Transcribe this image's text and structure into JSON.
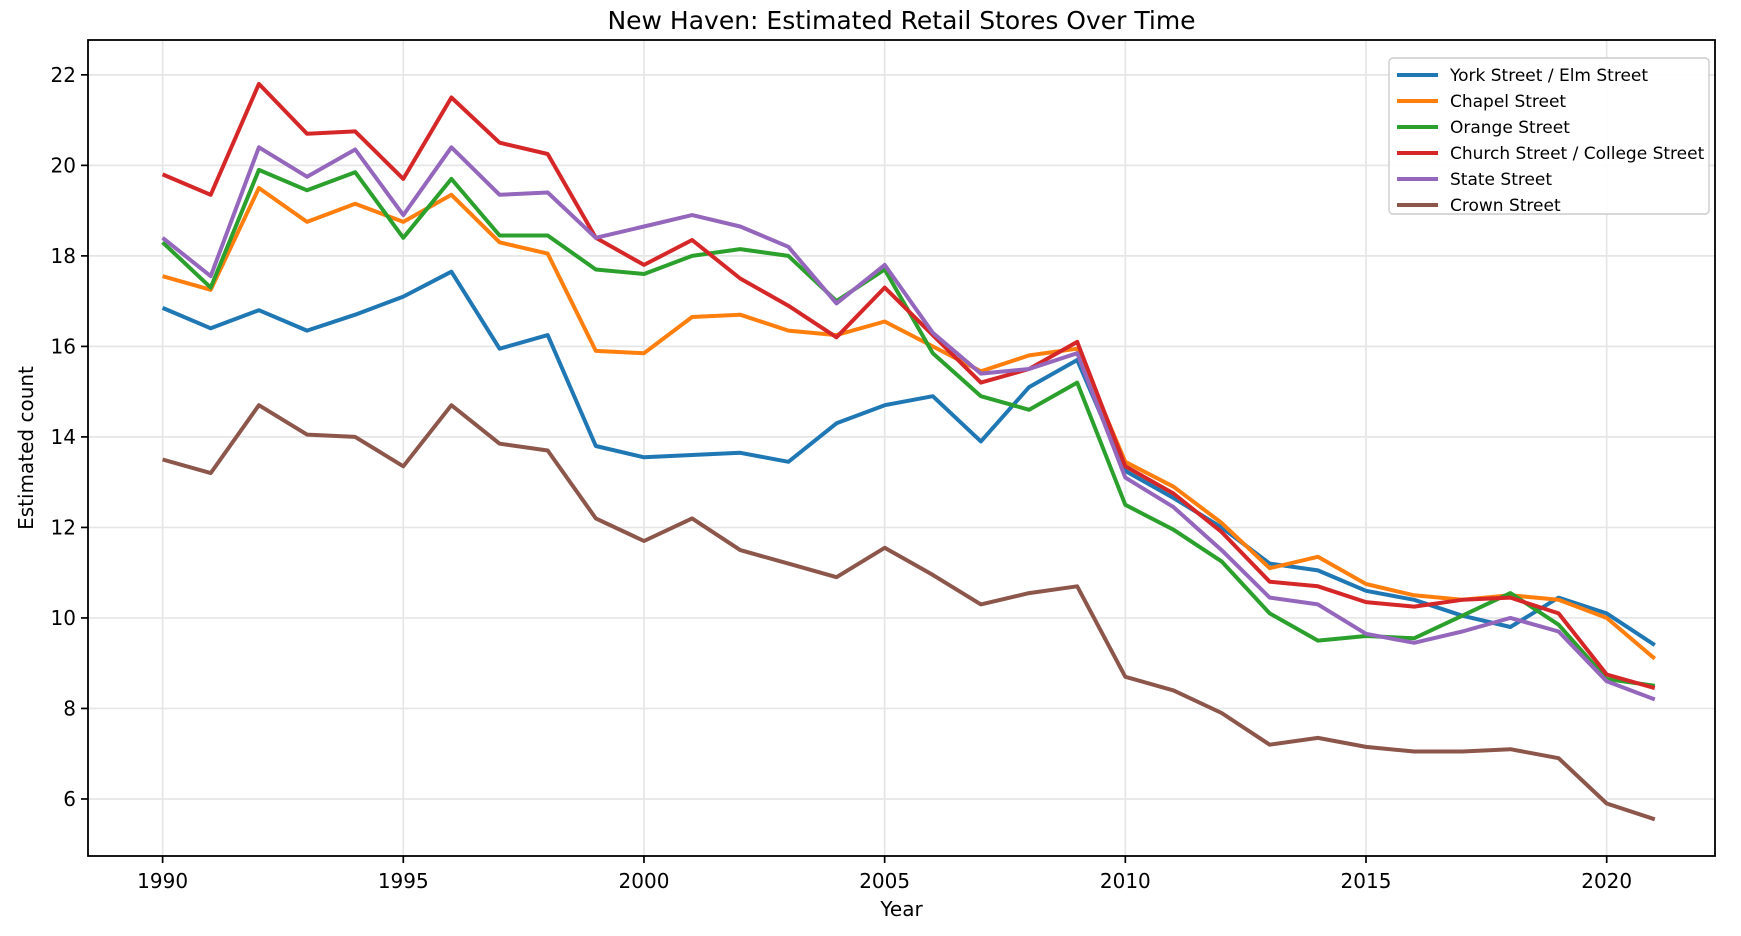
{
  "chart_data": {
    "type": "line",
    "title": "New Haven: Estimated Retail Stores Over Time",
    "xlabel": "Year",
    "ylabel": "Estimated count",
    "grid": true,
    "legend_position": "upper right",
    "x": [
      1990,
      1991,
      1992,
      1993,
      1994,
      1995,
      1996,
      1997,
      1998,
      1999,
      2000,
      2001,
      2002,
      2003,
      2004,
      2005,
      2006,
      2007,
      2008,
      2009,
      2010,
      2011,
      2012,
      2013,
      2014,
      2015,
      2016,
      2017,
      2018,
      2019,
      2020,
      2021
    ],
    "x_ticks": [
      1990,
      1995,
      2000,
      2005,
      2010,
      2015,
      2020
    ],
    "y_ticks": [
      6,
      8,
      10,
      12,
      14,
      16,
      18,
      20,
      22
    ],
    "xlim": [
      1988.45,
      2022.25
    ],
    "ylim": [
      4.74,
      22.77
    ],
    "series": [
      {
        "name": "York Street / Elm Street",
        "color": "#1f77b4",
        "values": [
          16.85,
          16.4,
          16.8,
          16.35,
          16.7,
          17.1,
          17.65,
          15.95,
          16.25,
          13.8,
          13.55,
          13.6,
          13.65,
          13.45,
          14.3,
          14.7,
          14.9,
          13.9,
          15.1,
          15.7,
          13.25,
          12.65,
          12.0,
          11.2,
          11.05,
          10.6,
          10.4,
          10.05,
          9.8,
          10.45,
          10.1,
          9.4
        ]
      },
      {
        "name": "Chapel Street",
        "color": "#ff7f0e",
        "values": [
          17.55,
          17.25,
          19.5,
          18.75,
          19.15,
          18.75,
          19.35,
          18.3,
          18.05,
          15.9,
          15.85,
          16.65,
          16.7,
          16.35,
          16.25,
          16.55,
          16.0,
          15.45,
          15.8,
          15.95,
          13.45,
          12.9,
          12.1,
          11.1,
          11.35,
          10.75,
          10.5,
          10.4,
          10.5,
          10.4,
          10.0,
          9.1
        ]
      },
      {
        "name": "Orange Street",
        "color": "#2ca02c",
        "values": [
          18.3,
          17.3,
          19.9,
          19.45,
          19.85,
          18.4,
          19.7,
          18.45,
          18.45,
          17.7,
          17.6,
          18.0,
          18.15,
          18.0,
          17.0,
          17.7,
          15.85,
          14.9,
          14.6,
          15.2,
          12.5,
          11.95,
          11.25,
          10.1,
          9.5,
          9.6,
          9.55,
          10.05,
          10.55,
          9.85,
          8.65,
          8.5
        ]
      },
      {
        "name": "Church Street / College Street",
        "color": "#d62728",
        "values": [
          19.8,
          19.35,
          21.8,
          20.7,
          20.75,
          19.7,
          21.5,
          20.5,
          20.25,
          18.4,
          17.8,
          18.35,
          17.5,
          16.9,
          16.2,
          17.3,
          16.25,
          15.2,
          15.5,
          16.1,
          13.35,
          12.75,
          11.9,
          10.8,
          10.7,
          10.35,
          10.25,
          10.4,
          10.45,
          10.1,
          8.75,
          8.45
        ]
      },
      {
        "name": "State Street",
        "color": "#9467bd",
        "values": [
          18.4,
          17.55,
          20.4,
          19.75,
          20.35,
          18.9,
          20.4,
          19.35,
          19.4,
          18.4,
          18.65,
          18.9,
          18.65,
          18.2,
          16.95,
          17.8,
          16.3,
          15.4,
          15.5,
          15.85,
          13.1,
          12.45,
          11.5,
          10.45,
          10.3,
          9.65,
          9.45,
          9.7,
          10.0,
          9.7,
          8.6,
          8.2
        ]
      },
      {
        "name": "Crown Street",
        "color": "#8c564b",
        "values": [
          13.5,
          13.2,
          14.7,
          14.05,
          14.0,
          13.35,
          14.7,
          13.85,
          13.7,
          12.2,
          11.7,
          12.2,
          11.5,
          11.2,
          10.9,
          11.55,
          10.95,
          10.3,
          10.55,
          10.7,
          8.7,
          8.4,
          7.9,
          7.2,
          7.35,
          7.15,
          7.05,
          7.05,
          7.1,
          6.9,
          5.9,
          5.55
        ]
      }
    ],
    "style": {
      "grid_color": "#e6e6e6",
      "spine_color": "#000000",
      "legend_border_color": "#cccccc",
      "background": "#ffffff"
    }
  }
}
